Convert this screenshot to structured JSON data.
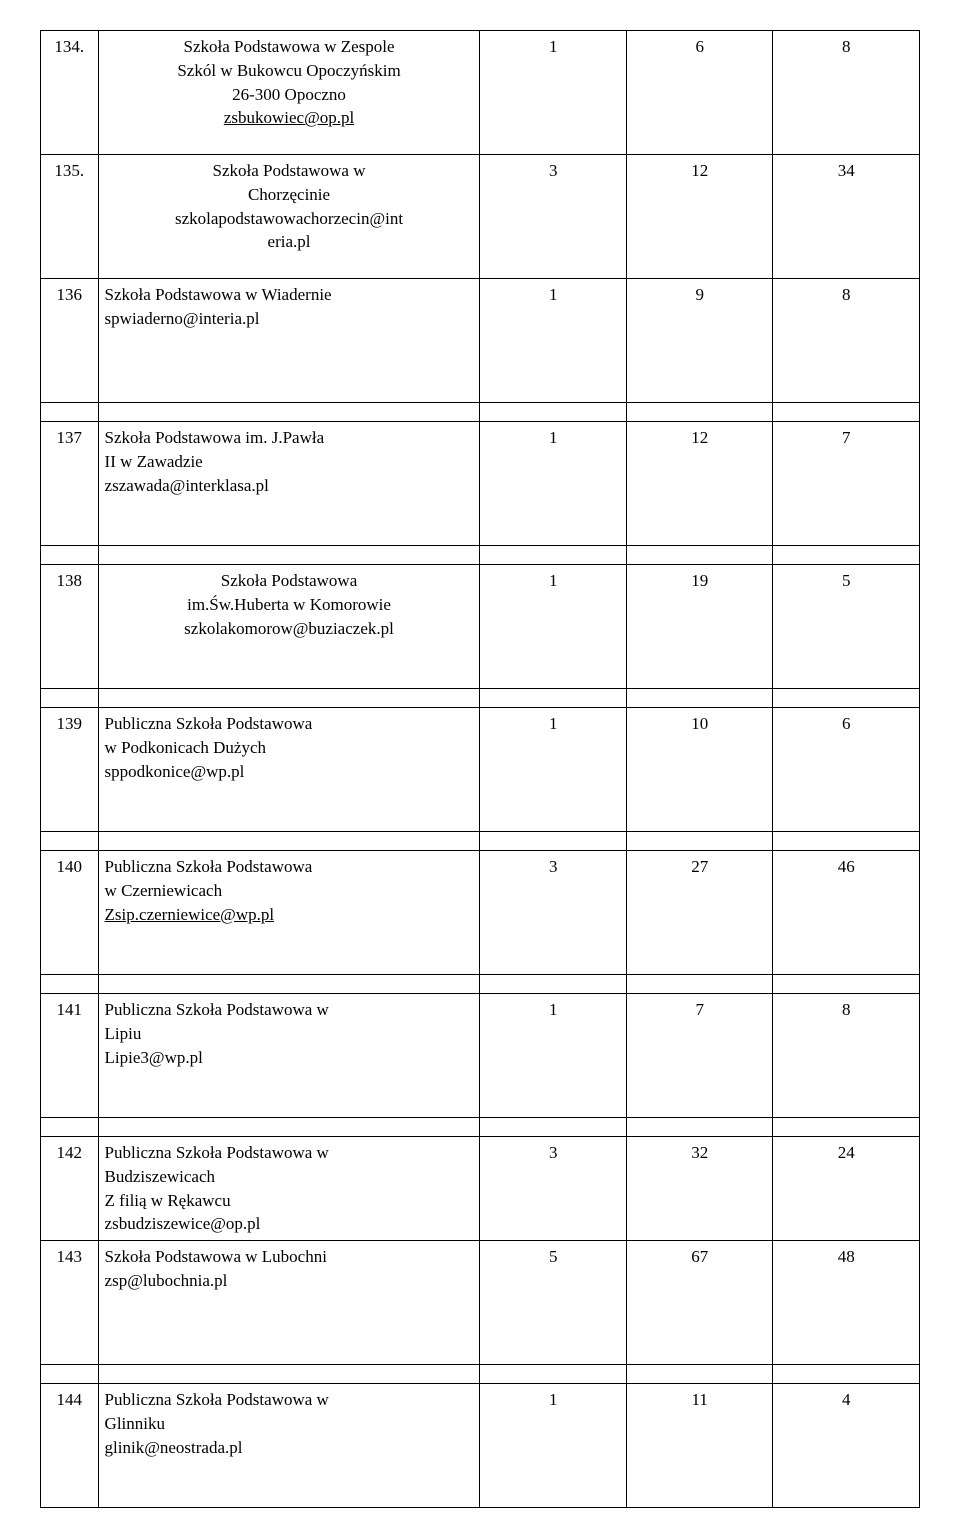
{
  "rows": [
    {
      "id": "134.",
      "name_lines": [
        "Szkoła Podstawowa w Zespole",
        "Szkól w Bukowcu Opoczyńskim",
        "26-300 Opoczno"
      ],
      "link": "zsbukowiec@op.pl",
      "a": "1",
      "b": "6",
      "c": "8",
      "tall": true
    },
    {
      "id": "135.",
      "name_lines": [
        "Szkoła Podstawowa w",
        "Chorzęcinie",
        "szkolapodstawowachorzecin@int",
        "eria.pl"
      ],
      "link": "",
      "a": "3",
      "b": "12",
      "c": "34",
      "tall": true
    },
    {
      "id": "136",
      "name_lines": [
        "Szkoła Podstawowa w Wiadernie",
        "spwiaderno@interia.pl"
      ],
      "link": "",
      "a": "1",
      "b": "9",
      "c": "8",
      "tall": true,
      "left_align": true
    },
    {
      "id": "137",
      "name_lines": [
        "Szkoła Podstawowa im. J.Pawła",
        "II w Zawadzie",
        "zszawada@interklasa.pl"
      ],
      "link": "",
      "a": "1",
      "b": "12",
      "c": "7",
      "tall": true,
      "left_align": true
    },
    {
      "id": "138",
      "name_lines": [
        "Szkoła Podstawowa",
        "im.Św.Huberta  w Komorowie",
        "szkolakomorow@buziaczek.pl"
      ],
      "link": "",
      "a": "1",
      "b": "19",
      "c": "5",
      "tall": true
    },
    {
      "id": "139",
      "name_lines": [
        "Publiczna Szkoła Podstawowa",
        "w Podkonicach Dużych",
        "sppodkonice@wp.pl"
      ],
      "link": "",
      "a": "1",
      "b": "10",
      "c": "6",
      "tall": true,
      "left_align": true
    },
    {
      "id": "140",
      "name_lines": [
        "Publiczna Szkoła Podstawowa",
        "w Czerniewicach"
      ],
      "link": "Zsip.czerniewice@wp.pl",
      "a": "3",
      "b": "27",
      "c": "46",
      "tall": true,
      "left_align": true
    },
    {
      "id": "141",
      "name_lines": [
        "Publiczna Szkoła Podstawowa w",
        "Lipiu",
        "Lipie3@wp.pl"
      ],
      "link": "",
      "a": "1",
      "b": "7",
      "c": "8",
      "tall": true,
      "left_align": true
    },
    {
      "id": "142",
      "name_lines": [
        "Publiczna Szkoła Podstawowa w",
        "Budziszewicach",
        "Z filią w Rękawcu",
        "zsbudziszewice@op.pl"
      ],
      "link": "",
      "a": "3",
      "b": "32",
      "c": "24",
      "left_align": true
    },
    {
      "id": "143",
      "name_lines": [
        "Szkoła Podstawowa w Lubochni",
        "zsp@lubochnia.pl"
      ],
      "link": "",
      "a": "5",
      "b": "67",
      "c": "48",
      "tall": true,
      "left_align": true
    },
    {
      "id": "144",
      "name_lines": [
        "Publiczna Szkoła Podstawowa w",
        "Glinniku",
        "glinik@neostrada.pl"
      ],
      "link": "",
      "a": "1",
      "b": "11",
      "c": "4",
      "tall": true,
      "left_align": true
    }
  ]
}
